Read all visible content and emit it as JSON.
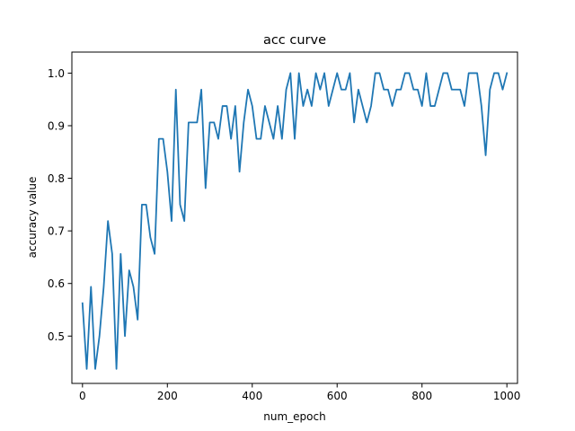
{
  "chart_data": {
    "type": "line",
    "title": "acc curve",
    "xlabel": "num_epoch",
    "ylabel": "accuracy value",
    "xlim": [
      -25,
      1025
    ],
    "ylim": [
      0.41,
      1.04
    ],
    "grid": false,
    "legend": "none",
    "x_ticks": [
      0,
      200,
      400,
      600,
      800,
      1000
    ],
    "x_tick_labels": [
      "0",
      "200",
      "400",
      "600",
      "800",
      "1000"
    ],
    "y_ticks": [
      0.5,
      0.6,
      0.7,
      0.8,
      0.9,
      1.0
    ],
    "y_tick_labels": [
      "0.5",
      "0.6",
      "0.7",
      "0.8",
      "0.9",
      "1.0"
    ],
    "series": [
      {
        "color": "#1f77b4",
        "x": [
          0,
          10,
          20,
          30,
          40,
          50,
          60,
          70,
          80,
          90,
          100,
          110,
          120,
          130,
          140,
          150,
          160,
          170,
          180,
          190,
          200,
          210,
          220,
          230,
          240,
          250,
          260,
          270,
          280,
          290,
          300,
          310,
          320,
          330,
          340,
          350,
          360,
          370,
          380,
          390,
          400,
          410,
          420,
          430,
          440,
          450,
          460,
          470,
          480,
          490,
          500,
          510,
          520,
          530,
          540,
          550,
          560,
          570,
          580,
          590,
          600,
          610,
          620,
          630,
          640,
          650,
          660,
          670,
          680,
          690,
          700,
          710,
          720,
          730,
          740,
          750,
          760,
          770,
          780,
          790,
          800,
          810,
          820,
          830,
          840,
          850,
          860,
          870,
          880,
          890,
          900,
          910,
          920,
          930,
          940,
          950,
          960,
          970,
          980,
          990,
          1000
        ],
        "values": [
          0.5625,
          0.4375,
          0.59375,
          0.4375,
          0.5,
          0.59375,
          0.71875,
          0.65625,
          0.4375,
          0.65625,
          0.5,
          0.625,
          0.59375,
          0.53125,
          0.75,
          0.75,
          0.6875,
          0.65625,
          0.875,
          0.875,
          0.8125,
          0.71875,
          0.96875,
          0.75,
          0.71875,
          0.90625,
          0.90625,
          0.90625,
          0.96875,
          0.78125,
          0.90625,
          0.90625,
          0.875,
          0.9375,
          0.9375,
          0.875,
          0.9375,
          0.8125,
          0.90625,
          0.96875,
          0.9375,
          0.875,
          0.875,
          0.9375,
          0.90625,
          0.875,
          0.9375,
          0.875,
          0.96875,
          1.0,
          0.875,
          1.0,
          0.9375,
          0.96875,
          0.9375,
          1.0,
          0.96875,
          1.0,
          0.9375,
          0.96875,
          1.0,
          0.96875,
          0.96875,
          1.0,
          0.90625,
          0.96875,
          0.9375,
          0.90625,
          0.9375,
          1.0,
          1.0,
          0.96875,
          0.96875,
          0.9375,
          0.96875,
          0.96875,
          1.0,
          1.0,
          0.96875,
          0.96875,
          0.9375,
          1.0,
          0.9375,
          0.9375,
          0.96875,
          1.0,
          1.0,
          0.96875,
          0.96875,
          0.96875,
          0.9375,
          1.0,
          1.0,
          1.0,
          0.9375,
          0.84375,
          0.96875,
          1.0,
          1.0,
          0.96875,
          1.0
        ]
      }
    ]
  }
}
